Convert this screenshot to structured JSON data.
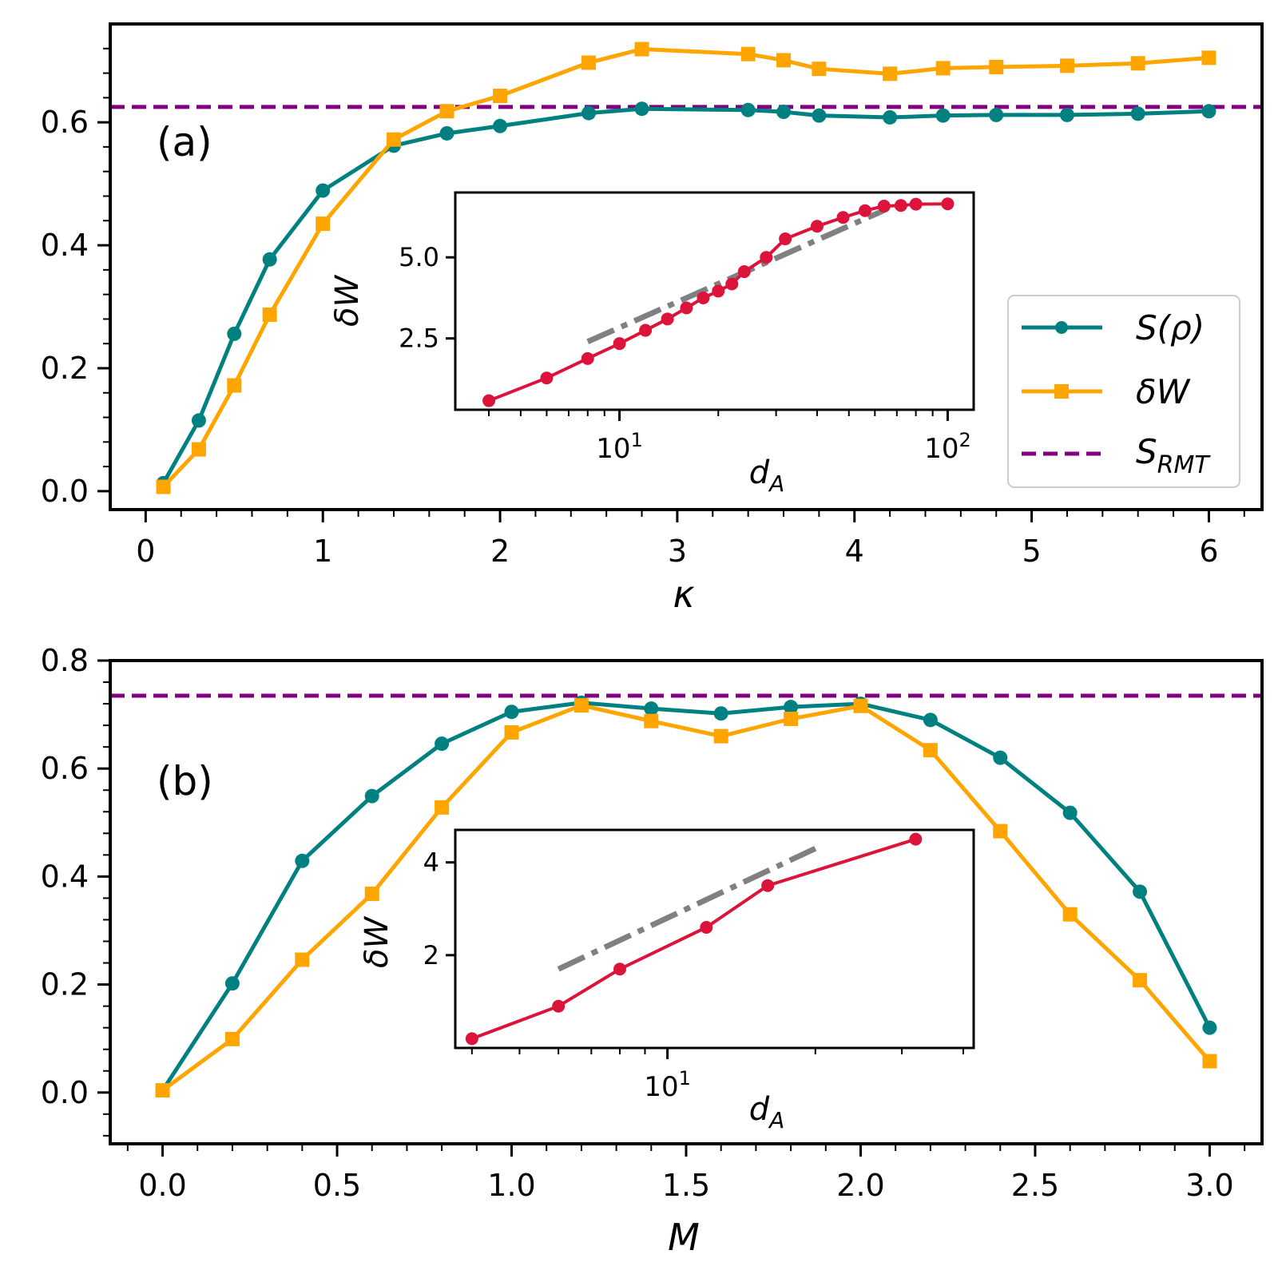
{
  "colors": {
    "teal": "#008080",
    "orange": "#FFA500",
    "purple": "#800080",
    "crimson": "#DC143C",
    "gray": "#808080"
  },
  "legend": {
    "placement": "lower-right",
    "entries": [
      {
        "label": "S(ρ)",
        "series": "S",
        "style": "line-circle"
      },
      {
        "label": "δW",
        "series": "dW",
        "style": "line-square"
      },
      {
        "label": "S_RMT",
        "series": "S_RMT",
        "style": "dashed"
      }
    ]
  },
  "chart_data": [
    {
      "type": "line",
      "panel_label": "(a)",
      "xlabel": "κ",
      "ylabel": "",
      "xlim": [
        -0.2,
        6.3
      ],
      "ylim": [
        -0.03,
        0.76
      ],
      "xticks": [
        0,
        1,
        2,
        3,
        4,
        5,
        6
      ],
      "xtick_labels": [
        "0",
        "1",
        "2",
        "3",
        "4",
        "5",
        "6"
      ],
      "yticks": [
        0.0,
        0.2,
        0.4,
        0.6
      ],
      "ytick_labels": [
        "0.0",
        "0.2",
        "0.4",
        "0.6"
      ],
      "hline": {
        "name": "S_RMT",
        "y": 0.625
      },
      "series": [
        {
          "name": "S(ρ)",
          "marker": "circle",
          "x": [
            0.1,
            0.3,
            0.5,
            0.7,
            1.0,
            1.4,
            1.7,
            2.0,
            2.5,
            2.8,
            3.4,
            3.6,
            3.8,
            4.2,
            4.5,
            4.8,
            5.2,
            5.6,
            6.0
          ],
          "y": [
            0.013,
            0.115,
            0.256,
            0.377,
            0.489,
            0.562,
            0.582,
            0.594,
            0.615,
            0.622,
            0.62,
            0.617,
            0.611,
            0.608,
            0.611,
            0.612,
            0.612,
            0.614,
            0.618
          ]
        },
        {
          "name": "δW",
          "marker": "square",
          "x": [
            0.1,
            0.3,
            0.5,
            0.7,
            1.0,
            1.4,
            1.7,
            2.0,
            2.5,
            2.8,
            3.4,
            3.6,
            3.8,
            4.2,
            4.5,
            4.8,
            5.2,
            5.6,
            6.0
          ],
          "y": [
            0.007,
            0.068,
            0.172,
            0.287,
            0.435,
            0.572,
            0.618,
            0.643,
            0.697,
            0.719,
            0.711,
            0.701,
            0.687,
            0.679,
            0.688,
            0.69,
            0.692,
            0.696,
            0.705
          ]
        }
      ],
      "inset": {
        "xlabel": "d_A",
        "ylabel": "δW",
        "xscale": "log",
        "xlim": [
          3.16,
          120
        ],
        "ylim": [
          0.3,
          7.0
        ],
        "yticks": [
          2.5,
          5.0
        ],
        "ytick_labels": [
          "2.5",
          "5.0"
        ],
        "xticks": [
          10,
          100
        ],
        "xtick_labels": [
          "10^1",
          "10^2"
        ],
        "series": {
          "x": [
            4,
            6,
            8,
            10,
            12,
            14,
            16,
            18,
            20,
            22,
            24,
            28,
            32,
            40,
            48,
            56,
            64,
            72,
            80,
            100
          ],
          "y": [
            0.58,
            1.28,
            1.88,
            2.34,
            2.75,
            3.1,
            3.44,
            3.75,
            3.96,
            4.18,
            4.56,
            5.0,
            5.57,
            5.96,
            6.23,
            6.44,
            6.58,
            6.6,
            6.64,
            6.65
          ]
        },
        "guide": {
          "style": "dash-dot",
          "x": [
            8,
            64
          ],
          "y": [
            2.4,
            6.45
          ]
        }
      }
    },
    {
      "type": "line",
      "panel_label": "(b)",
      "xlabel": "M",
      "ylabel": "",
      "xlim": [
        -0.15,
        3.15
      ],
      "ylim": [
        -0.095,
        0.8
      ],
      "xticks": [
        0.0,
        0.5,
        1.0,
        1.5,
        2.0,
        2.5,
        3.0
      ],
      "xtick_labels": [
        "0.0",
        "0.5",
        "1.0",
        "1.5",
        "2.0",
        "2.5",
        "3.0"
      ],
      "yticks": [
        0.0,
        0.2,
        0.4,
        0.6,
        0.8
      ],
      "ytick_labels": [
        "0.0",
        "0.2",
        "0.4",
        "0.6",
        "0.8"
      ],
      "hline": {
        "name": "S_RMT",
        "y": 0.735
      },
      "series": [
        {
          "name": "S(ρ)",
          "marker": "circle",
          "x": [
            0.0,
            0.2,
            0.4,
            0.6,
            0.8,
            1.0,
            1.2,
            1.4,
            1.6,
            1.8,
            2.0,
            2.2,
            2.4,
            2.6,
            2.8,
            3.0
          ],
          "y": [
            0.004,
            0.202,
            0.429,
            0.549,
            0.646,
            0.705,
            0.722,
            0.711,
            0.702,
            0.714,
            0.72,
            0.69,
            0.62,
            0.518,
            0.372,
            0.12
          ]
        },
        {
          "name": "δW",
          "marker": "square",
          "x": [
            0.0,
            0.2,
            0.4,
            0.6,
            0.8,
            1.0,
            1.2,
            1.4,
            1.6,
            1.8,
            2.0,
            2.2,
            2.4,
            2.6,
            2.8,
            3.0
          ],
          "y": [
            0.004,
            0.099,
            0.246,
            0.368,
            0.528,
            0.667,
            0.717,
            0.688,
            0.66,
            0.692,
            0.716,
            0.634,
            0.484,
            0.33,
            0.208,
            0.058
          ]
        }
      ],
      "inset": {
        "xlabel": "d_A",
        "ylabel": "δW",
        "xscale": "log",
        "xlim": [
          3.7,
          42
        ],
        "ylim": 0.0,
        "yticks": [
          2,
          4
        ],
        "ytick_labels": [
          "2",
          "4"
        ],
        "xticks": [
          10
        ],
        "xtick_labels": [
          "10^1"
        ],
        "series": {
          "x": [
            4,
            6,
            8,
            12,
            16,
            32
          ],
          "y": [
            0.2,
            0.9,
            1.7,
            2.6,
            3.5,
            4.5
          ]
        },
        "guide": {
          "style": "dash-dot",
          "x": [
            6,
            20
          ],
          "y": [
            1.7,
            4.3
          ]
        }
      }
    }
  ]
}
